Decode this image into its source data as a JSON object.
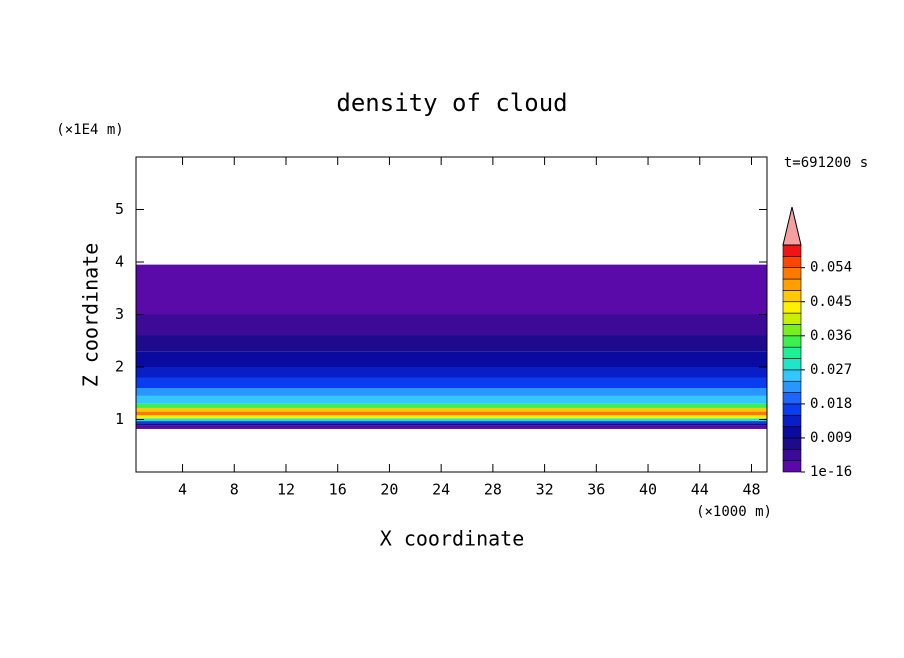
{
  "chart_data": {
    "type": "contour",
    "title": "density of cloud",
    "x_label": "X coordinate",
    "y_label": "Z coordinate",
    "x_unit": "(×1000 m)",
    "y_unit": "(×1E4 m)",
    "annotation": "t=691200 s",
    "xlim": [
      0.4,
      49.2
    ],
    "xticks": [
      4,
      8,
      12,
      16,
      20,
      24,
      28,
      32,
      36,
      40,
      44,
      48
    ],
    "ylim": [
      0,
      6
    ],
    "yticks": [
      1,
      2,
      3,
      4,
      5
    ],
    "z": [
      0.82,
      0.88,
      0.93,
      0.97,
      1.02,
      1.08,
      1.15,
      1.22,
      1.3,
      1.45,
      1.6,
      1.8,
      2.0,
      2.3,
      2.6,
      3.0,
      3.95
    ],
    "values": [
      0.002,
      0.008,
      0.015,
      0.027,
      0.042,
      0.051,
      0.045,
      0.033,
      0.026,
      0.021,
      0.017,
      0.013,
      0.009,
      0.006,
      0.003,
      0.001
    ],
    "colorbar": {
      "levels": [
        1e-16,
        0.003,
        0.006,
        0.009,
        0.012,
        0.015,
        0.018,
        0.021,
        0.024,
        0.027,
        0.03,
        0.033,
        0.036,
        0.039,
        0.042,
        0.045,
        0.048,
        0.051,
        0.054,
        0.057,
        0.06
      ],
      "colors": [
        "#5a0aa8",
        "#3c0a96",
        "#1e0a8c",
        "#0a0aa0",
        "#0a1ec8",
        "#0a3cf0",
        "#1e64ff",
        "#2896ff",
        "#32c8ff",
        "#1ee6c8",
        "#1ef096",
        "#3cf050",
        "#78f01e",
        "#c8f000",
        "#fff000",
        "#ffc800",
        "#ffa000",
        "#ff7800",
        "#ff4600",
        "#f01414"
      ],
      "extend_color": "#f4a0a0",
      "ticks": [
        {
          "value": 1e-16,
          "label": "1e-16"
        },
        0.009,
        0.018,
        0.027,
        0.036,
        0.045,
        0.054
      ]
    }
  }
}
